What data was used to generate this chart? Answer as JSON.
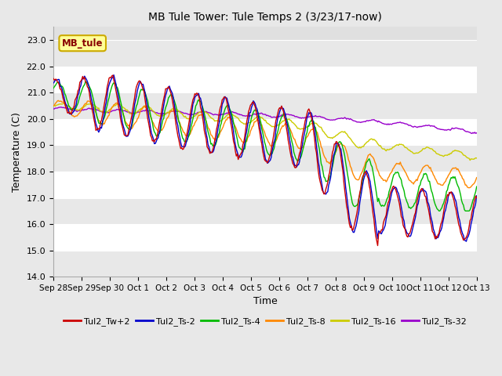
{
  "title": "MB Tule Tower: Tule Temps 2 (3/23/17-now)",
  "xlabel": "Time",
  "ylabel": "Temperature (C)",
  "ylim": [
    14.0,
    23.5
  ],
  "yticks": [
    14.0,
    15.0,
    16.0,
    17.0,
    18.0,
    19.0,
    20.0,
    21.0,
    22.0,
    23.0
  ],
  "series_colors": {
    "Tul2_Tw+2": "#cc0000",
    "Tul2_Ts-2": "#0000cc",
    "Tul2_Ts-4": "#00bb00",
    "Tul2_Ts-8": "#ff8800",
    "Tul2_Ts-16": "#cccc00",
    "Tul2_Ts-32": "#9900cc"
  },
  "xtick_labels": [
    "Sep 28",
    "Sep 29",
    "Sep 30",
    "Oct 1",
    "Oct 2",
    "Oct 3",
    "Oct 4",
    "Oct 5",
    "Oct 6",
    "Oct 7",
    "Oct 8",
    "Oct 9",
    "Oct 10",
    "Oct 11",
    "Oct 12",
    "Oct 13"
  ],
  "bg_outer": "#e8e8e8",
  "bg_band_dark": "#dcdcdc",
  "bg_band_light": "#ebebeb"
}
